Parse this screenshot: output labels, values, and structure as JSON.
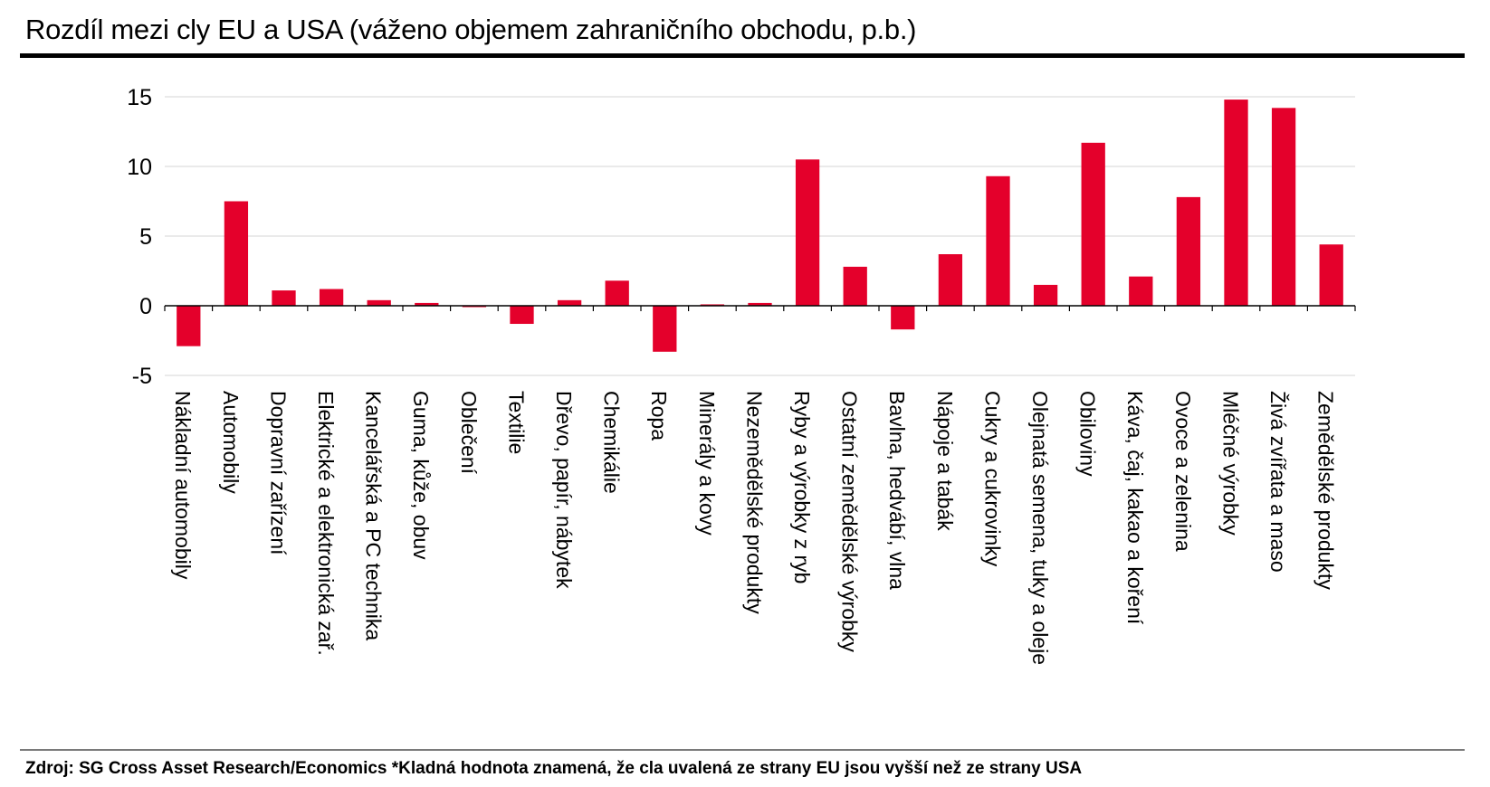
{
  "title": "Rozdíl mezi cly EU a USA (váženo objemem zahraničního obchodu, p.b.)",
  "footer": "Zdroj: SG Cross Asset Research/Economics *Kladná hodnota znamená, že cla uvalená ze strany EU jsou vyšší než ze strany USA",
  "colors": {
    "bar": "#e4002b",
    "grid": "#e3e3e3",
    "axis": "#000000"
  },
  "chart_data": {
    "type": "bar",
    "title": "Rozdíl mezi cly EU a USA (váženo objemem zahraničního obchodu, p.b.)",
    "xlabel": "",
    "ylabel": "",
    "ylim": [
      -5,
      15
    ],
    "yticks": [
      -5,
      0,
      5,
      10,
      15
    ],
    "ytick_labels": [
      "-5",
      "0",
      "5",
      "10",
      "15"
    ],
    "grid": true,
    "legend": "none",
    "categories": [
      "Nákladní automobily",
      "Automobily",
      "Dopravní zařízení",
      "Elektrické a elektronická zař.",
      "Kancelářská a PC technika",
      "Guma, kůže, obuv",
      "Oblečení",
      "Textilie",
      "Dřevo, papír, nábytek",
      "Chemikálie",
      "Ropa",
      "Minerály a kovy",
      "Nezemědělské produkty",
      "Ryby a výrobky z ryb",
      "Ostatní zemědělské výrobky",
      "Bavlna, hedvábí, vlna",
      "Nápoje a tabák",
      "Cukry a cukrovinky",
      "Olejnatá semena, tuky a oleje",
      "Obiloviny",
      "Káva, čaj, kakao a koření",
      "Ovoce a zelenina",
      "Mléčné výrobky",
      "Živá zvířata a maso",
      "Zemědělské produkty"
    ],
    "values": [
      -2.9,
      7.5,
      1.1,
      1.2,
      0.4,
      0.2,
      -0.1,
      -1.3,
      0.4,
      1.8,
      -3.3,
      0.1,
      0.2,
      10.5,
      2.8,
      -1.7,
      3.7,
      9.3,
      1.5,
      11.7,
      2.1,
      7.8,
      14.8,
      14.2,
      4.4
    ]
  }
}
